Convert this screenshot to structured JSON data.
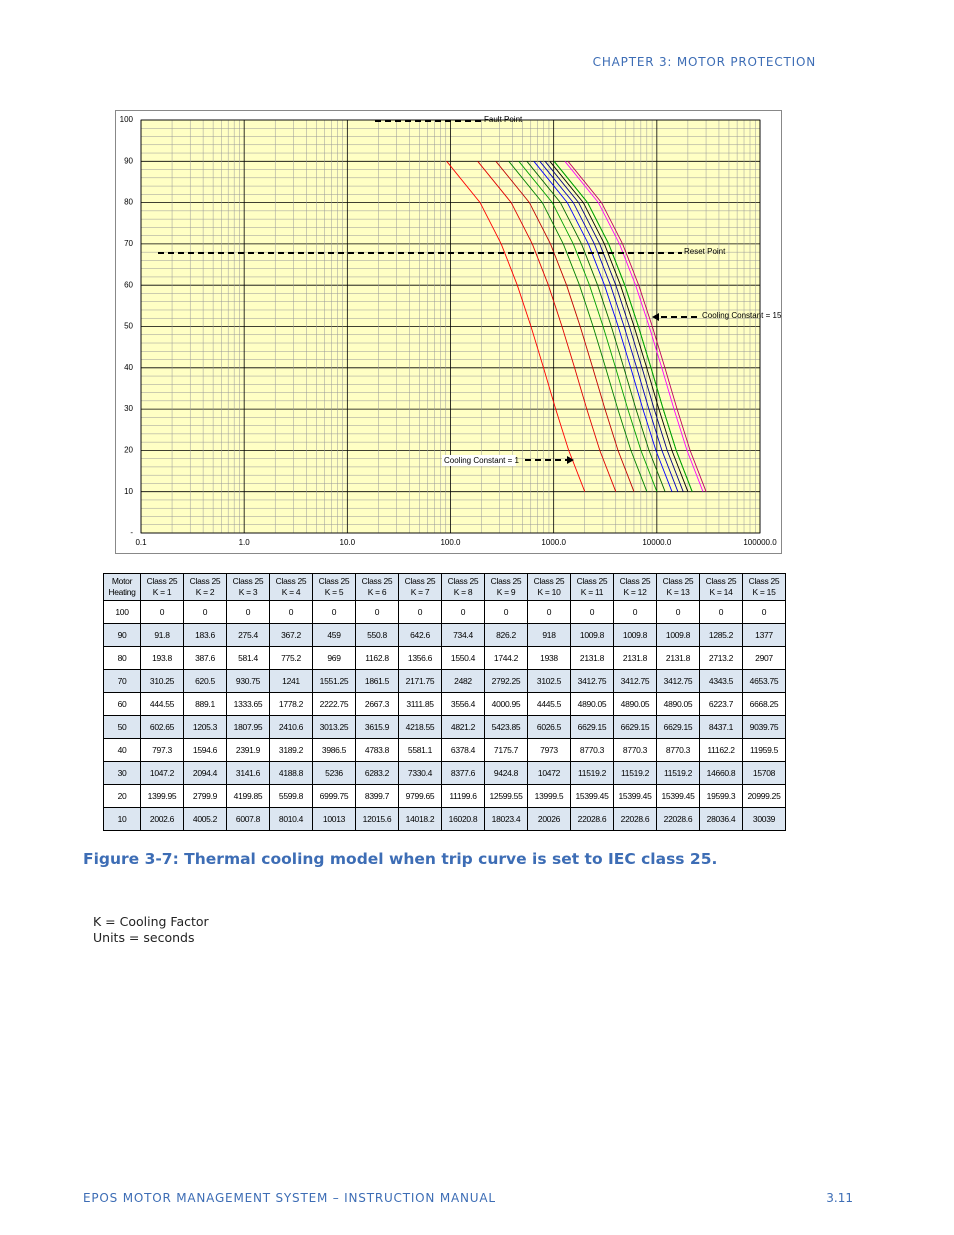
{
  "header": {
    "chapter": "CHAPTER 3: MOTOR PROTECTION"
  },
  "chart_data": {
    "type": "line",
    "xlog": true,
    "grid": true,
    "xlim": [
      0.1,
      100000
    ],
    "ylim": [
      0,
      100
    ],
    "xticks": [
      {
        "value": 0.1,
        "label": "0.1"
      },
      {
        "value": 1,
        "label": "1.0"
      },
      {
        "value": 10,
        "label": "10.0"
      },
      {
        "value": 100,
        "label": "100.0"
      },
      {
        "value": 1000,
        "label": "1000.0"
      },
      {
        "value": 10000,
        "label": "10000.0"
      },
      {
        "value": 100000,
        "label": "100000.0"
      }
    ],
    "yticks": [
      {
        "value": 0,
        "label": "-"
      },
      10,
      20,
      30,
      40,
      50,
      60,
      70,
      80,
      90,
      100
    ],
    "colors": [
      "#ff0000",
      "#e00000",
      "#c00000",
      "#008000",
      "#00a000",
      "#006600",
      "#0000ff",
      "#0000c0",
      "#000080",
      "#000000",
      "#00c000",
      "#40e040",
      "#009900",
      "#ff00ff",
      "#c00060"
    ],
    "annotations": [
      "Fault Point",
      "Reset Point",
      "Cooling Constant = 15",
      "Cooling Constant = 1"
    ]
  },
  "table": {
    "header": [
      [
        "Motor",
        "Heating"
      ],
      [
        "Class 25",
        "K = 1"
      ],
      [
        "Class 25",
        "K = 2"
      ],
      [
        "Class 25",
        "K = 3"
      ],
      [
        "Class 25",
        "K = 4"
      ],
      [
        "Class 25",
        "K = 5"
      ],
      [
        "Class 25",
        "K = 6"
      ],
      [
        "Class 25",
        "K = 7"
      ],
      [
        "Class 25",
        "K = 8"
      ],
      [
        "Class 25",
        "K = 9"
      ],
      [
        "Class 25",
        "K = 10"
      ],
      [
        "Class 25",
        "K = 11"
      ],
      [
        "Class 25",
        "K = 12"
      ],
      [
        "Class 25",
        "K = 13"
      ],
      [
        "Class 25",
        "K = 14"
      ],
      [
        "Class 25",
        "K = 15"
      ]
    ],
    "rows": [
      [
        100,
        0,
        0,
        0,
        0,
        0,
        0,
        0,
        0,
        0,
        0,
        0,
        0,
        0,
        0,
        0
      ],
      [
        90,
        91.8,
        183.6,
        275.4,
        367.2,
        459,
        550.8,
        642.6,
        734.4,
        826.2,
        918,
        1009.8,
        1009.8,
        1009.8,
        1285.2,
        1377
      ],
      [
        80,
        193.8,
        387.6,
        581.4,
        775.2,
        969,
        1162.8,
        1356.6,
        1550.4,
        1744.2,
        1938,
        2131.8,
        2131.8,
        2131.8,
        2713.2,
        2907
      ],
      [
        70,
        310.25,
        620.5,
        930.75,
        1241,
        1551.25,
        1861.5,
        2171.75,
        2482,
        2792.25,
        3102.5,
        3412.75,
        3412.75,
        3412.75,
        4343.5,
        4653.75
      ],
      [
        60,
        444.55,
        889.1,
        1333.65,
        1778.2,
        2222.75,
        2667.3,
        3111.85,
        3556.4,
        4000.95,
        4445.5,
        4890.05,
        4890.05,
        4890.05,
        6223.7,
        6668.25
      ],
      [
        50,
        602.65,
        1205.3,
        1807.95,
        2410.6,
        3013.25,
        3615.9,
        4218.55,
        4821.2,
        5423.85,
        6026.5,
        6629.15,
        6629.15,
        6629.15,
        8437.1,
        9039.75
      ],
      [
        40,
        797.3,
        1594.6,
        2391.9,
        3189.2,
        3986.5,
        4783.8,
        5581.1,
        6378.4,
        7175.7,
        7973,
        8770.3,
        8770.3,
        8770.3,
        11162.2,
        11959.5
      ],
      [
        30,
        1047.2,
        2094.4,
        3141.6,
        4188.8,
        5236,
        6283.2,
        7330.4,
        8377.6,
        9424.8,
        10472,
        11519.2,
        11519.2,
        11519.2,
        14660.8,
        15708
      ],
      [
        20,
        1399.95,
        2799.9,
        4199.85,
        5599.8,
        6999.75,
        8399.7,
        9799.65,
        11199.6,
        12599.55,
        13999.5,
        15399.45,
        15399.45,
        15399.45,
        19599.3,
        20999.25
      ],
      [
        10,
        2002.6,
        4005.2,
        6007.8,
        8010.4,
        10013,
        12015.6,
        14018.2,
        16020.8,
        18023.4,
        20026,
        22028.6,
        22028.6,
        22028.6,
        28036.4,
        30039
      ]
    ]
  },
  "caption": "Figure 3-7: Thermal cooling model when trip curve is set to IEC class 25.",
  "notes": [
    "K = Cooling Factor",
    "Units = seconds"
  ],
  "footer": {
    "manual": "EPOS MOTOR MANAGEMENT SYSTEM – INSTRUCTION MANUAL",
    "page": "3.11"
  }
}
